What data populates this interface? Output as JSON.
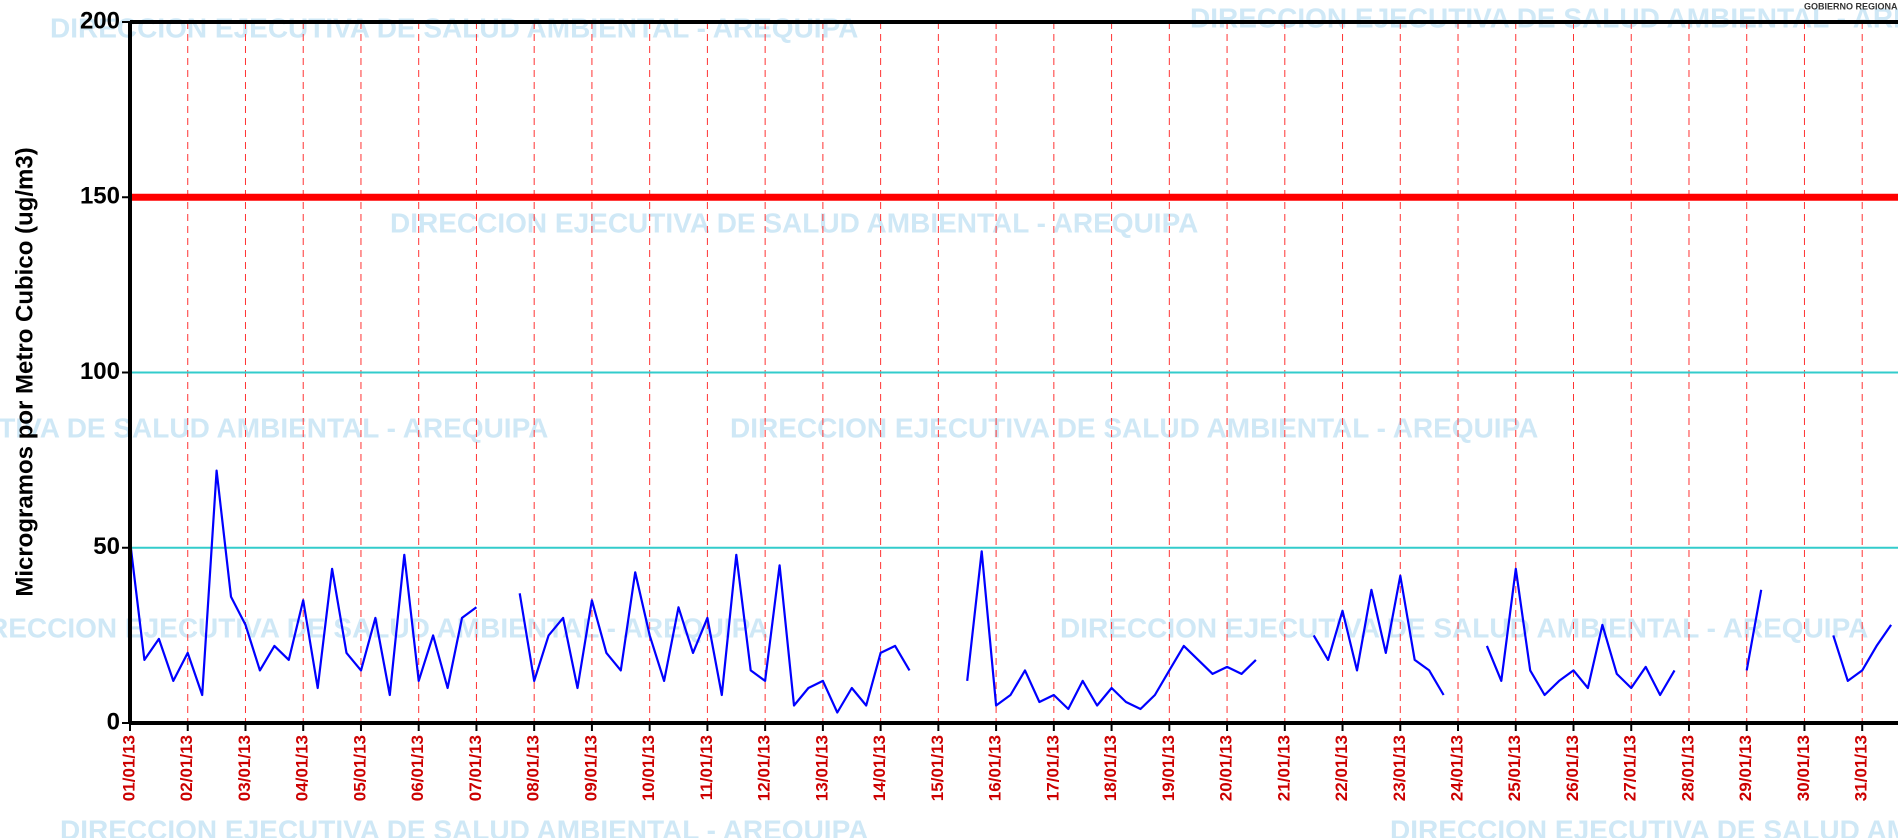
{
  "chart_data": {
    "type": "line",
    "corner_text": "GOBIERNO REGIONAL",
    "watermark": "DIRECCION EJECUTIVA DE SALUD AMBIENTAL - AREQUIPA",
    "y_label": "Microgramos por Metro Cubico (ug/m3)",
    "color": "#0000ff",
    "x": [
      1,
      1.25,
      1.5,
      1.75,
      2,
      2.25,
      2.5,
      2.75,
      3,
      3.25,
      3.5,
      3.75,
      4,
      4.25,
      4.5,
      4.75,
      5,
      5.25,
      5.5,
      5.75,
      6,
      6.25,
      6.5,
      6.75,
      7,
      7.25,
      7.5,
      7.75,
      8,
      8.25,
      8.5,
      8.75,
      9,
      9.25,
      9.5,
      9.75,
      10,
      10.25,
      10.5,
      10.75,
      11,
      11.25,
      11.5,
      11.75,
      12,
      12.25,
      12.5,
      12.75,
      13,
      13.25,
      13.5,
      13.75,
      14,
      14.25,
      14.5,
      14.75,
      15,
      15.25,
      15.5,
      15.75,
      16,
      16.25,
      16.5,
      16.75,
      17,
      17.25,
      17.5,
      17.75,
      18,
      18.25,
      18.5,
      18.75,
      19,
      19.25,
      19.5,
      19.75,
      20,
      20.25,
      20.5,
      20.75,
      21,
      21.25,
      21.5,
      21.75,
      22,
      22.25,
      22.5,
      22.75,
      23,
      23.25,
      23.5,
      23.75,
      24,
      24.25,
      24.5,
      24.75,
      25,
      25.25,
      25.5,
      25.75,
      26,
      26.25,
      26.5,
      26.75,
      27,
      27.25,
      27.5,
      27.75,
      28,
      28.25,
      28.5,
      28.75,
      29,
      29.25,
      29.5,
      29.75,
      30,
      30.25,
      30.5,
      30.75,
      31,
      31.25,
      31.5
    ],
    "values": [
      52,
      18,
      24,
      12,
      20,
      8,
      72,
      36,
      28,
      15,
      22,
      18,
      35,
      10,
      44,
      20,
      15,
      30,
      8,
      48,
      12,
      25,
      10,
      30,
      33,
      null,
      null,
      37,
      12,
      25,
      30,
      10,
      35,
      20,
      15,
      43,
      25,
      12,
      33,
      20,
      30,
      8,
      48,
      15,
      12,
      45,
      5,
      10,
      12,
      3,
      10,
      5,
      20,
      22,
      15,
      null,
      null,
      null,
      12,
      49,
      5,
      8,
      15,
      6,
      8,
      4,
      12,
      5,
      10,
      6,
      4,
      8,
      15,
      22,
      18,
      14,
      16,
      14,
      18,
      null,
      null,
      null,
      25,
      18,
      32,
      15,
      38,
      20,
      42,
      18,
      15,
      8,
      null,
      null,
      22,
      12,
      44,
      15,
      8,
      12,
      15,
      10,
      28,
      14,
      10,
      16,
      8,
      15,
      null,
      null,
      null,
      null,
      15,
      38,
      null,
      null,
      null,
      null,
      25,
      12,
      15,
      22,
      28
    ],
    "xlim": [
      1,
      31.62
    ],
    "ylim": [
      0,
      200
    ],
    "yticks": [
      0,
      50,
      100,
      150,
      200
    ],
    "xticks": [
      {
        "value": 1,
        "label": "01/01/13"
      },
      {
        "value": 2,
        "label": "02/01/13"
      },
      {
        "value": 3,
        "label": "03/01/13"
      },
      {
        "value": 4,
        "label": "04/01/13"
      },
      {
        "value": 5,
        "label": "05/01/13"
      },
      {
        "value": 6,
        "label": "06/01/13"
      },
      {
        "value": 7,
        "label": "07/01/13"
      },
      {
        "value": 8,
        "label": "08/01/13"
      },
      {
        "value": 9,
        "label": "09/01/13"
      },
      {
        "value": 10,
        "label": "10/01/13"
      },
      {
        "value": 11,
        "label": "11/01/13"
      },
      {
        "value": 12,
        "label": "12/01/13"
      },
      {
        "value": 13,
        "label": "13/01/13"
      },
      {
        "value": 14,
        "label": "14/01/13"
      },
      {
        "value": 15,
        "label": "15/01/13"
      },
      {
        "value": 16,
        "label": "16/01/13"
      },
      {
        "value": 17,
        "label": "17/01/13"
      },
      {
        "value": 18,
        "label": "18/01/13"
      },
      {
        "value": 19,
        "label": "19/01/13"
      },
      {
        "value": 20,
        "label": "20/01/13"
      },
      {
        "value": 21,
        "label": "21/01/13"
      },
      {
        "value": 22,
        "label": "22/01/13"
      },
      {
        "value": 23,
        "label": "23/01/13"
      },
      {
        "value": 24,
        "label": "24/01/13"
      },
      {
        "value": 25,
        "label": "25/01/13"
      },
      {
        "value": 26,
        "label": "26/01/13"
      },
      {
        "value": 27,
        "label": "27/01/13"
      },
      {
        "value": 28,
        "label": "28/01/13"
      },
      {
        "value": 29,
        "label": "29/01/13"
      },
      {
        "value": 30,
        "label": "30/01/13"
      },
      {
        "value": 31,
        "label": "31/01/13"
      }
    ],
    "reference_lines": [
      {
        "value": 150,
        "color": "#ff0000"
      },
      {
        "value": 100,
        "color": "#33cccc"
      },
      {
        "value": 50,
        "color": "#33cccc"
      }
    ],
    "grid_color": "#ff3333"
  }
}
